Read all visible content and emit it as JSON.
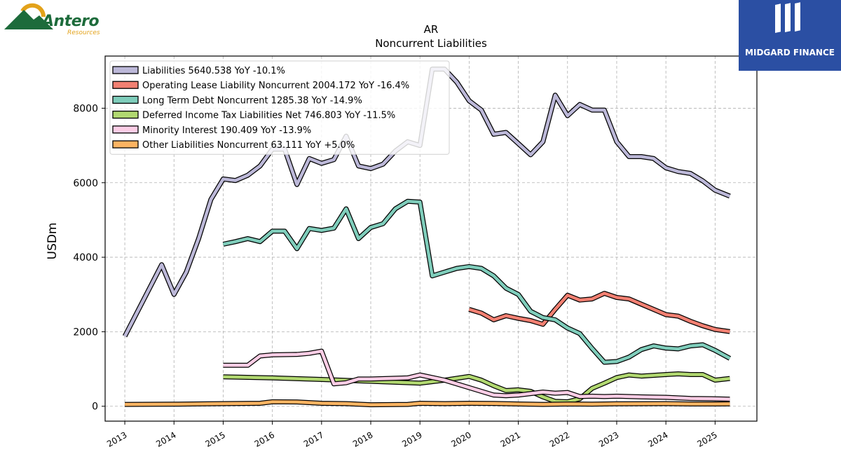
{
  "logos": {
    "left": {
      "name": "Antero",
      "sub": "Resources"
    },
    "right": {
      "name": "MIDGARD FINANCE"
    }
  },
  "chart_data": {
    "type": "line",
    "title": "AR",
    "subtitle": "Noncurrent  Liabilities",
    "ylabel": "USDm",
    "xlabel": "",
    "xlim": [
      2012.6,
      2025.85
    ],
    "ylim": [
      -400,
      9400
    ],
    "yticks": [
      0,
      2000,
      4000,
      6000,
      8000
    ],
    "xticks": [
      2013,
      2014,
      2015,
      2016,
      2017,
      2018,
      2019,
      2020,
      2021,
      2022,
      2023,
      2024,
      2025
    ],
    "grid": true,
    "legend_position": "top-left",
    "series": [
      {
        "name": "Liabilities  5640.538 YoY -10.1%",
        "color": "#bcb8d8",
        "points": [
          [
            2013.0,
            1880
          ],
          [
            2013.75,
            3800
          ],
          [
            2014.0,
            3000
          ],
          [
            2014.25,
            3600
          ],
          [
            2014.5,
            4500
          ],
          [
            2014.75,
            5550
          ],
          [
            2015.0,
            6100
          ],
          [
            2015.25,
            6060
          ],
          [
            2015.5,
            6200
          ],
          [
            2015.75,
            6450
          ],
          [
            2016.0,
            6900
          ],
          [
            2016.25,
            6900
          ],
          [
            2016.5,
            5950
          ],
          [
            2016.75,
            6650
          ],
          [
            2017.0,
            6520
          ],
          [
            2017.25,
            6620
          ],
          [
            2017.5,
            7250
          ],
          [
            2017.75,
            6450
          ],
          [
            2018.0,
            6380
          ],
          [
            2018.25,
            6500
          ],
          [
            2018.5,
            6850
          ],
          [
            2018.75,
            7100
          ],
          [
            2019.0,
            7000
          ],
          [
            2019.25,
            9050
          ],
          [
            2019.5,
            9050
          ],
          [
            2019.75,
            8700
          ],
          [
            2020.0,
            8200
          ],
          [
            2020.25,
            7950
          ],
          [
            2020.5,
            7300
          ],
          [
            2020.75,
            7350
          ],
          [
            2021.0,
            7050
          ],
          [
            2021.25,
            6750
          ],
          [
            2021.5,
            7100
          ],
          [
            2021.75,
            8350
          ],
          [
            2022.0,
            7800
          ],
          [
            2022.25,
            8100
          ],
          [
            2022.5,
            7950
          ],
          [
            2022.75,
            7950
          ],
          [
            2023.0,
            7100
          ],
          [
            2023.25,
            6700
          ],
          [
            2023.5,
            6700
          ],
          [
            2023.75,
            6650
          ],
          [
            2024.0,
            6400
          ],
          [
            2024.25,
            6300
          ],
          [
            2024.5,
            6250
          ],
          [
            2024.75,
            6050
          ],
          [
            2025.0,
            5800
          ],
          [
            2025.3,
            5640
          ]
        ]
      },
      {
        "name": "Operating Lease Liability Noncurrent  2004.172 YoY -16.4%",
        "color": "#f28072",
        "points": [
          [
            2020.0,
            2600
          ],
          [
            2020.25,
            2500
          ],
          [
            2020.5,
            2320
          ],
          [
            2020.75,
            2430
          ],
          [
            2021.0,
            2360
          ],
          [
            2021.25,
            2300
          ],
          [
            2021.5,
            2200
          ],
          [
            2021.75,
            2600
          ],
          [
            2022.0,
            2980
          ],
          [
            2022.25,
            2850
          ],
          [
            2022.5,
            2880
          ],
          [
            2022.75,
            3030
          ],
          [
            2023.0,
            2920
          ],
          [
            2023.25,
            2880
          ],
          [
            2023.5,
            2740
          ],
          [
            2023.75,
            2600
          ],
          [
            2024.0,
            2460
          ],
          [
            2024.25,
            2420
          ],
          [
            2024.5,
            2280
          ],
          [
            2024.75,
            2160
          ],
          [
            2025.0,
            2060
          ],
          [
            2025.3,
            2004
          ]
        ]
      },
      {
        "name": "Long Term Debt Noncurrent  1285.38 YoY -14.9%",
        "color": "#7fcdbb",
        "points": [
          [
            2015.0,
            4350
          ],
          [
            2015.25,
            4420
          ],
          [
            2015.5,
            4500
          ],
          [
            2015.75,
            4420
          ],
          [
            2016.0,
            4700
          ],
          [
            2016.25,
            4700
          ],
          [
            2016.5,
            4230
          ],
          [
            2016.75,
            4770
          ],
          [
            2017.0,
            4720
          ],
          [
            2017.25,
            4780
          ],
          [
            2017.5,
            5300
          ],
          [
            2017.75,
            4500
          ],
          [
            2018.0,
            4800
          ],
          [
            2018.25,
            4900
          ],
          [
            2018.5,
            5300
          ],
          [
            2018.75,
            5500
          ],
          [
            2019.0,
            5480
          ],
          [
            2019.25,
            3500
          ],
          [
            2019.5,
            3600
          ],
          [
            2019.75,
            3700
          ],
          [
            2020.0,
            3750
          ],
          [
            2020.25,
            3700
          ],
          [
            2020.5,
            3500
          ],
          [
            2020.75,
            3170
          ],
          [
            2021.0,
            3000
          ],
          [
            2021.25,
            2550
          ],
          [
            2021.5,
            2380
          ],
          [
            2021.75,
            2320
          ],
          [
            2022.0,
            2100
          ],
          [
            2022.25,
            1950
          ],
          [
            2022.5,
            1550
          ],
          [
            2022.75,
            1180
          ],
          [
            2023.0,
            1200
          ],
          [
            2023.25,
            1320
          ],
          [
            2023.5,
            1520
          ],
          [
            2023.75,
            1620
          ],
          [
            2024.0,
            1560
          ],
          [
            2024.25,
            1540
          ],
          [
            2024.5,
            1620
          ],
          [
            2024.75,
            1650
          ],
          [
            2025.0,
            1500
          ],
          [
            2025.3,
            1285
          ]
        ]
      },
      {
        "name": "Deferred Income Tax Liabilities Net  746.803 YoY -11.5%",
        "color": "#b1d870",
        "points": [
          [
            2015.0,
            790
          ],
          [
            2016.0,
            760
          ],
          [
            2017.0,
            720
          ],
          [
            2018.0,
            670
          ],
          [
            2019.0,
            620
          ],
          [
            2019.5,
            700
          ],
          [
            2020.0,
            800
          ],
          [
            2020.25,
            700
          ],
          [
            2020.5,
            550
          ],
          [
            2020.75,
            420
          ],
          [
            2021.0,
            440
          ],
          [
            2021.25,
            400
          ],
          [
            2021.5,
            250
          ],
          [
            2021.75,
            130
          ],
          [
            2022.0,
            120
          ],
          [
            2022.25,
            200
          ],
          [
            2022.5,
            480
          ],
          [
            2022.75,
            620
          ],
          [
            2023.0,
            770
          ],
          [
            2023.25,
            840
          ],
          [
            2023.5,
            810
          ],
          [
            2023.75,
            830
          ],
          [
            2024.0,
            850
          ],
          [
            2024.25,
            870
          ],
          [
            2024.5,
            850
          ],
          [
            2024.75,
            850
          ],
          [
            2025.0,
            700
          ],
          [
            2025.3,
            746
          ]
        ]
      },
      {
        "name": "Minority Interest  190.409 YoY -13.9%",
        "color": "#fccde5",
        "points": [
          [
            2015.0,
            1100
          ],
          [
            2015.5,
            1100
          ],
          [
            2015.75,
            1350
          ],
          [
            2016.0,
            1380
          ],
          [
            2016.5,
            1390
          ],
          [
            2016.75,
            1420
          ],
          [
            2017.0,
            1480
          ],
          [
            2017.25,
            600
          ],
          [
            2017.5,
            630
          ],
          [
            2017.75,
            730
          ],
          [
            2018.0,
            730
          ],
          [
            2018.75,
            760
          ],
          [
            2019.0,
            840
          ],
          [
            2019.5,
            700
          ],
          [
            2020.0,
            500
          ],
          [
            2020.5,
            300
          ],
          [
            2020.75,
            280
          ],
          [
            2021.0,
            300
          ],
          [
            2021.5,
            380
          ],
          [
            2021.75,
            350
          ],
          [
            2022.0,
            370
          ],
          [
            2022.25,
            260
          ],
          [
            2022.5,
            270
          ],
          [
            2022.75,
            260
          ],
          [
            2023.0,
            270
          ],
          [
            2023.5,
            250
          ],
          [
            2024.0,
            240
          ],
          [
            2024.5,
            210
          ],
          [
            2025.0,
            200
          ],
          [
            2025.3,
            190
          ]
        ]
      },
      {
        "name": "Other Liabilities Noncurrent  63.111 YoY +5.0%",
        "color": "#fdb462",
        "points": [
          [
            2013.0,
            50
          ],
          [
            2014.0,
            55
          ],
          [
            2015.0,
            70
          ],
          [
            2015.75,
            80
          ],
          [
            2016.0,
            120
          ],
          [
            2016.5,
            115
          ],
          [
            2017.0,
            80
          ],
          [
            2017.5,
            70
          ],
          [
            2018.0,
            40
          ],
          [
            2018.75,
            50
          ],
          [
            2019.0,
            80
          ],
          [
            2019.5,
            70
          ],
          [
            2020.0,
            80
          ],
          [
            2020.5,
            75
          ],
          [
            2021.0,
            60
          ],
          [
            2021.5,
            50
          ],
          [
            2022.0,
            60
          ],
          [
            2022.5,
            55
          ],
          [
            2023.0,
            65
          ],
          [
            2024.0,
            70
          ],
          [
            2024.5,
            60
          ],
          [
            2025.0,
            60
          ],
          [
            2025.3,
            63
          ]
        ]
      }
    ]
  }
}
